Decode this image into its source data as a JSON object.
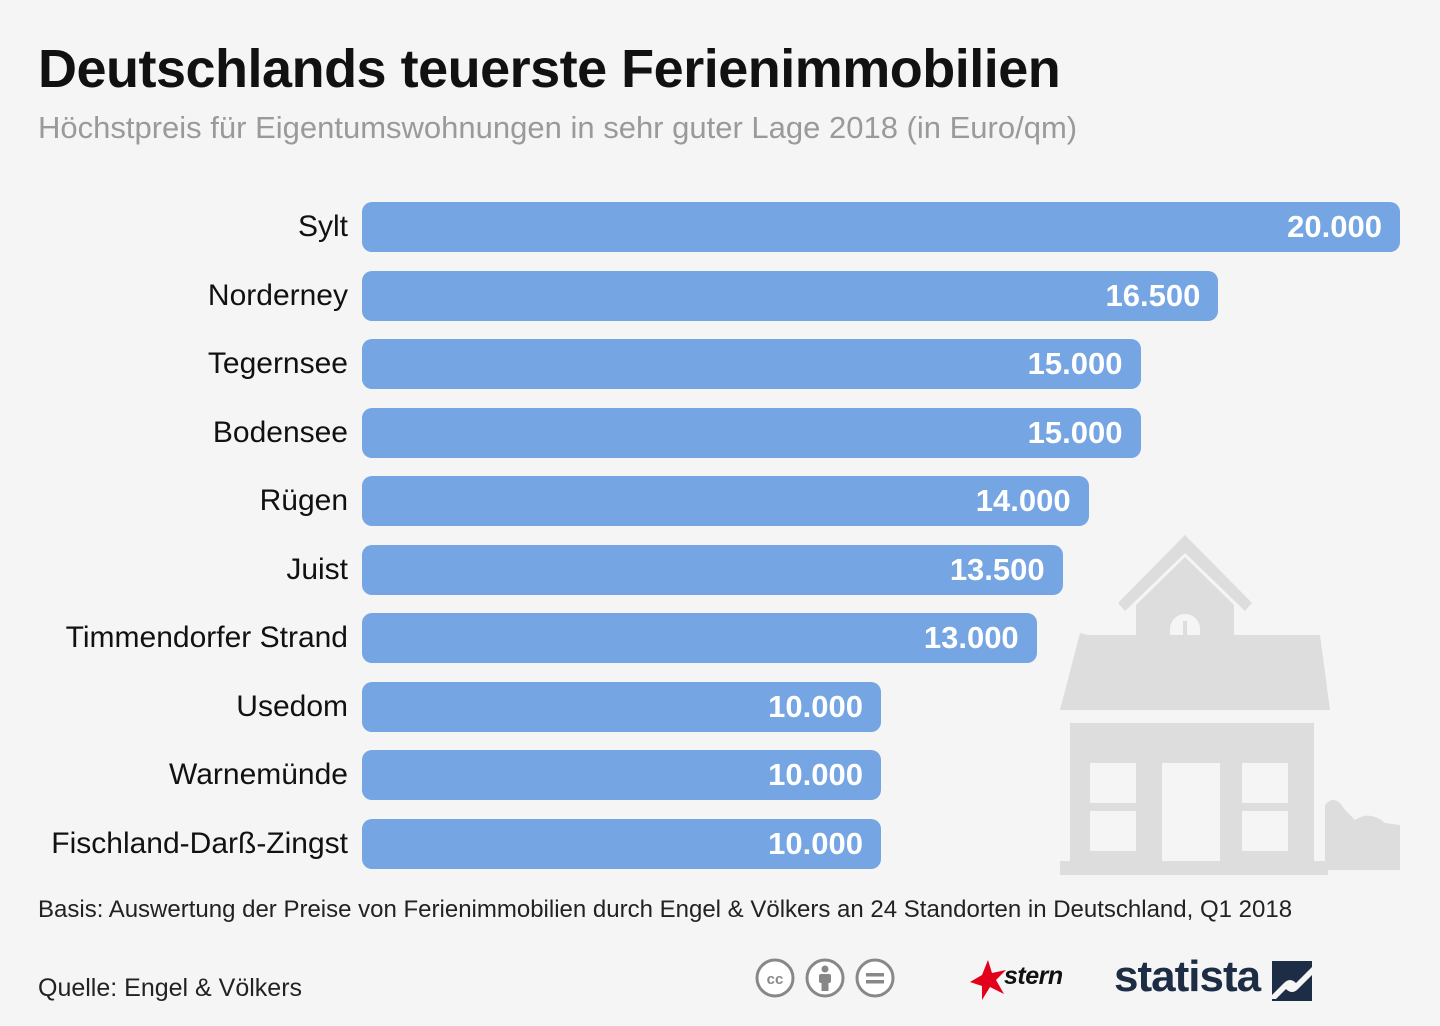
{
  "title": "Deutschlands teuerste Ferienimmobilien",
  "subtitle": "Höchstpreis für Eigentumswohnungen in sehr guter Lage 2018 (in Euro/qm)",
  "chart_data": {
    "type": "bar",
    "orientation": "horizontal",
    "title": "Deutschlands teuerste Ferienimmobilien",
    "subtitle": "Höchstpreis für Eigentumswohnungen in sehr guter Lage 2018 (in Euro/qm)",
    "categories": [
      "Sylt",
      "Norderney",
      "Tegernsee",
      "Bodensee",
      "Rügen",
      "Juist",
      "Timmendorfer Strand",
      "Usedom",
      "Warnemünde",
      "Fischland-Darß-Zingst"
    ],
    "values": [
      20000,
      16500,
      15000,
      15000,
      14000,
      13500,
      13000,
      10000,
      10000,
      10000
    ],
    "value_labels": [
      "20.000",
      "16.500",
      "15.000",
      "15.000",
      "14.000",
      "13.500",
      "13.000",
      "10.000",
      "10.000",
      "10.000"
    ],
    "xlim": [
      0,
      20000
    ],
    "grid": false,
    "bar_color": "#75a5e2",
    "value_label_color": "#ffffff"
  },
  "footer": {
    "note": "Basis: Auswertung der Preise von Ferienimmobilien durch Engel & Völkers an 24 Standorten in Deutschland, Q1 2018",
    "source": "Quelle: Engel & Völkers",
    "license_icons": [
      "cc-icon",
      "attribution-icon",
      "no-derivatives-icon"
    ],
    "stern_logo": "stern",
    "statista_logo": "statista"
  },
  "colors": {
    "background": "#f5f5f5",
    "bar": "#75a5e2",
    "house_illustration": "#dddddd",
    "stern_red": "#e3001b",
    "statista_navy": "#1c2d45"
  }
}
